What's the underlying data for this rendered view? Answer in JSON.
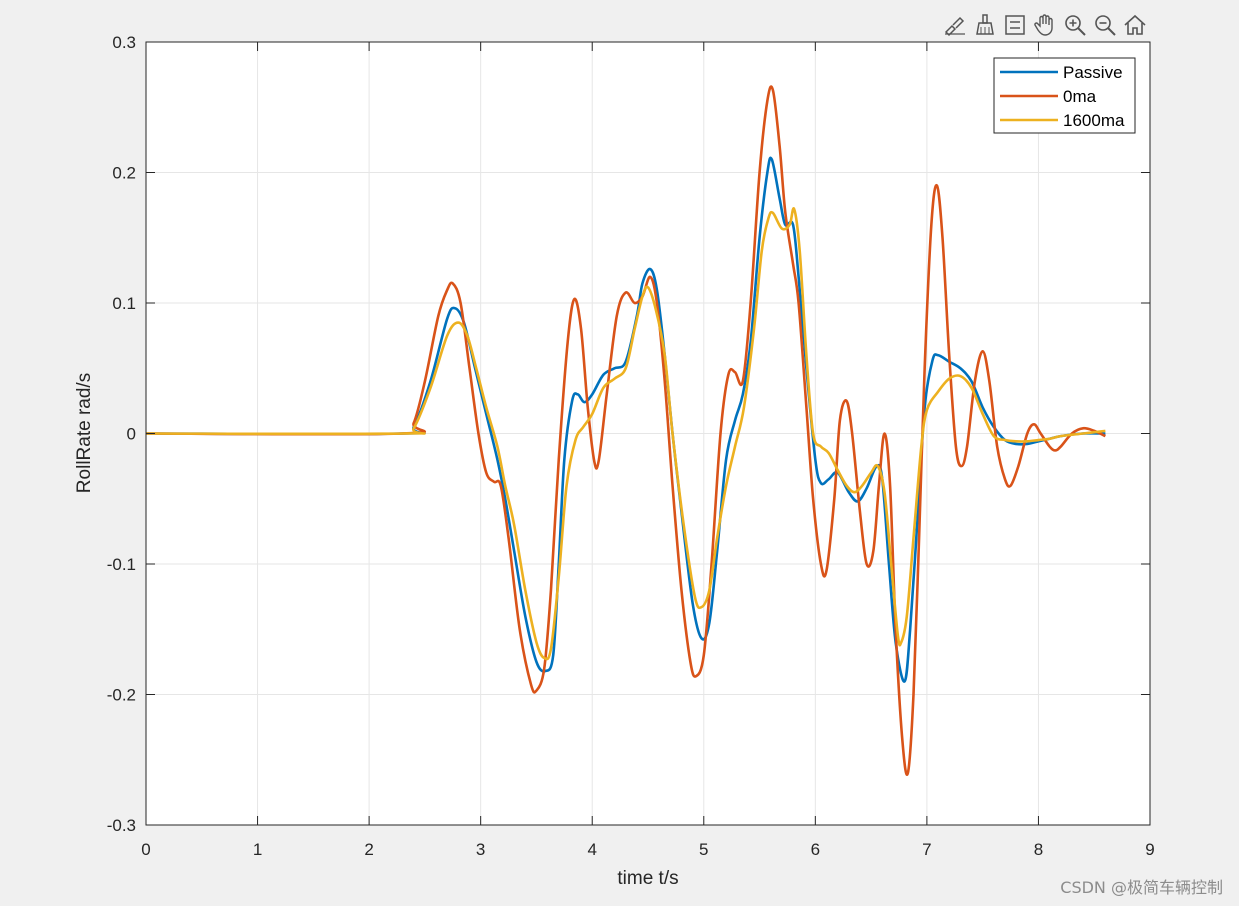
{
  "toolbar": {
    "icons": [
      "brush-edit-icon",
      "data-brush-icon",
      "legend-toggle-icon",
      "pan-hand-icon",
      "zoom-in-icon",
      "zoom-out-icon",
      "home-restore-icon"
    ]
  },
  "watermark": "CSDN @极简车辆控制",
  "colors": {
    "figure_bg": "#f0f0f0",
    "axes_bg": "#ffffff",
    "grid": "#e6e6e6",
    "axis": "#262626",
    "passive": "#0072BD",
    "zero_ma": "#D95319",
    "ma1600": "#EDB120"
  },
  "chart_data": {
    "type": "line",
    "xlabel": "time t/s",
    "ylabel": "RollRate rad/s",
    "xlim": [
      0,
      9
    ],
    "ylim": [
      -0.3,
      0.3
    ],
    "xticks": [
      0,
      1,
      2,
      3,
      4,
      5,
      6,
      7,
      8,
      9
    ],
    "yticks": [
      -0.3,
      -0.2,
      -0.1,
      0,
      0.1,
      0.2,
      0.3
    ],
    "xtick_labels": [
      "0",
      "1",
      "2",
      "3",
      "4",
      "5",
      "6",
      "7",
      "8",
      "9"
    ],
    "ytick_labels": [
      "-0.3",
      "-0.2",
      "-0.1",
      "0",
      "0.1",
      "0.2",
      "0.3"
    ],
    "grid": true,
    "legend_position": "top-right",
    "series": [
      {
        "name": "Passive",
        "color": "#0072BD",
        "points": [
          [
            0,
            0
          ],
          [
            2.3,
            0
          ],
          [
            2.4,
            0.005
          ],
          [
            2.55,
            0.04
          ],
          [
            2.7,
            0.088
          ],
          [
            2.77,
            0.096
          ],
          [
            2.85,
            0.085
          ],
          [
            2.95,
            0.05
          ],
          [
            3.05,
            0.015
          ],
          [
            3.15,
            -0.02
          ],
          [
            3.22,
            -0.05
          ],
          [
            3.3,
            -0.09
          ],
          [
            3.4,
            -0.14
          ],
          [
            3.5,
            -0.175
          ],
          [
            3.58,
            -0.182
          ],
          [
            3.65,
            -0.17
          ],
          [
            3.7,
            -0.1
          ],
          [
            3.75,
            -0.02
          ],
          [
            3.82,
            0.025
          ],
          [
            3.87,
            0.03
          ],
          [
            3.93,
            0.024
          ],
          [
            4.0,
            0.03
          ],
          [
            4.1,
            0.045
          ],
          [
            4.2,
            0.05
          ],
          [
            4.3,
            0.055
          ],
          [
            4.4,
            0.09
          ],
          [
            4.45,
            0.115
          ],
          [
            4.52,
            0.126
          ],
          [
            4.58,
            0.11
          ],
          [
            4.65,
            0.06
          ],
          [
            4.72,
            0.0
          ],
          [
            4.8,
            -0.06
          ],
          [
            4.9,
            -0.13
          ],
          [
            4.98,
            -0.157
          ],
          [
            5.05,
            -0.145
          ],
          [
            5.12,
            -0.09
          ],
          [
            5.2,
            -0.02
          ],
          [
            5.28,
            0.01
          ],
          [
            5.35,
            0.03
          ],
          [
            5.42,
            0.07
          ],
          [
            5.5,
            0.15
          ],
          [
            5.57,
            0.2
          ],
          [
            5.61,
            0.21
          ],
          [
            5.68,
            0.18
          ],
          [
            5.73,
            0.16
          ],
          [
            5.8,
            0.16
          ],
          [
            5.85,
            0.12
          ],
          [
            5.92,
            0.05
          ],
          [
            6.0,
            -0.02
          ],
          [
            6.05,
            -0.038
          ],
          [
            6.12,
            -0.035
          ],
          [
            6.2,
            -0.03
          ],
          [
            6.3,
            -0.045
          ],
          [
            6.38,
            -0.052
          ],
          [
            6.46,
            -0.042
          ],
          [
            6.55,
            -0.025
          ],
          [
            6.6,
            -0.035
          ],
          [
            6.66,
            -0.1
          ],
          [
            6.72,
            -0.16
          ],
          [
            6.8,
            -0.19
          ],
          [
            6.85,
            -0.15
          ],
          [
            6.92,
            -0.06
          ],
          [
            6.98,
            0.02
          ],
          [
            7.05,
            0.056
          ],
          [
            7.1,
            0.06
          ],
          [
            7.2,
            0.055
          ],
          [
            7.3,
            0.05
          ],
          [
            7.4,
            0.04
          ],
          [
            7.5,
            0.02
          ],
          [
            7.6,
            0.005
          ],
          [
            7.7,
            -0.005
          ],
          [
            7.8,
            -0.008
          ],
          [
            7.9,
            -0.008
          ],
          [
            8.0,
            -0.006
          ],
          [
            8.1,
            -0.004
          ],
          [
            8.2,
            -0.002
          ],
          [
            8.4,
            0.0
          ],
          [
            8.6,
            0.0
          ]
        ]
      },
      {
        "name": "0ma",
        "color": "#D95319",
        "points": [
          [
            0,
            0
          ],
          [
            2.3,
            0
          ],
          [
            2.4,
            0.008
          ],
          [
            2.5,
            0.04
          ],
          [
            2.62,
            0.09
          ],
          [
            2.7,
            0.11
          ],
          [
            2.75,
            0.115
          ],
          [
            2.82,
            0.1
          ],
          [
            2.9,
            0.05
          ],
          [
            2.98,
            0.0
          ],
          [
            3.05,
            -0.03
          ],
          [
            3.12,
            -0.037
          ],
          [
            3.18,
            -0.04
          ],
          [
            3.25,
            -0.08
          ],
          [
            3.35,
            -0.15
          ],
          [
            3.45,
            -0.192
          ],
          [
            3.5,
            -0.197
          ],
          [
            3.57,
            -0.18
          ],
          [
            3.63,
            -0.12
          ],
          [
            3.7,
            -0.02
          ],
          [
            3.78,
            0.07
          ],
          [
            3.84,
            0.103
          ],
          [
            3.9,
            0.08
          ],
          [
            3.96,
            0.02
          ],
          [
            4.02,
            -0.022
          ],
          [
            4.06,
            -0.02
          ],
          [
            4.13,
            0.03
          ],
          [
            4.22,
            0.09
          ],
          [
            4.3,
            0.108
          ],
          [
            4.38,
            0.1
          ],
          [
            4.45,
            0.105
          ],
          [
            4.52,
            0.12
          ],
          [
            4.58,
            0.1
          ],
          [
            4.65,
            0.04
          ],
          [
            4.72,
            -0.04
          ],
          [
            4.8,
            -0.12
          ],
          [
            4.88,
            -0.175
          ],
          [
            4.93,
            -0.186
          ],
          [
            5.0,
            -0.17
          ],
          [
            5.07,
            -0.1
          ],
          [
            5.15,
            0.0
          ],
          [
            5.22,
            0.045
          ],
          [
            5.28,
            0.047
          ],
          [
            5.35,
            0.04
          ],
          [
            5.42,
            0.1
          ],
          [
            5.5,
            0.2
          ],
          [
            5.57,
            0.255
          ],
          [
            5.62,
            0.263
          ],
          [
            5.68,
            0.22
          ],
          [
            5.73,
            0.17
          ],
          [
            5.8,
            0.13
          ],
          [
            5.85,
            0.1
          ],
          [
            5.92,
            0.02
          ],
          [
            5.98,
            -0.05
          ],
          [
            6.05,
            -0.1
          ],
          [
            6.1,
            -0.105
          ],
          [
            6.17,
            -0.05
          ],
          [
            6.22,
            0.01
          ],
          [
            6.28,
            0.025
          ],
          [
            6.33,
            0.0
          ],
          [
            6.4,
            -0.06
          ],
          [
            6.46,
            -0.1
          ],
          [
            6.52,
            -0.09
          ],
          [
            6.57,
            -0.04
          ],
          [
            6.62,
            0.0
          ],
          [
            6.67,
            -0.04
          ],
          [
            6.72,
            -0.15
          ],
          [
            6.78,
            -0.235
          ],
          [
            6.83,
            -0.26
          ],
          [
            6.88,
            -0.2
          ],
          [
            6.93,
            -0.08
          ],
          [
            6.98,
            0.05
          ],
          [
            7.04,
            0.16
          ],
          [
            7.09,
            0.19
          ],
          [
            7.14,
            0.15
          ],
          [
            7.2,
            0.06
          ],
          [
            7.26,
            -0.01
          ],
          [
            7.31,
            -0.025
          ],
          [
            7.36,
            -0.01
          ],
          [
            7.43,
            0.04
          ],
          [
            7.5,
            0.063
          ],
          [
            7.56,
            0.04
          ],
          [
            7.63,
            -0.01
          ],
          [
            7.7,
            -0.035
          ],
          [
            7.75,
            -0.04
          ],
          [
            7.82,
            -0.025
          ],
          [
            7.9,
            0.0
          ],
          [
            7.96,
            0.007
          ],
          [
            8.02,
            0.0
          ],
          [
            8.1,
            -0.01
          ],
          [
            8.15,
            -0.013
          ],
          [
            8.2,
            -0.01
          ],
          [
            8.3,
            0.0
          ],
          [
            8.4,
            0.004
          ],
          [
            8.5,
            0.002
          ],
          [
            8.6,
            -0.002
          ]
        ]
      },
      {
        "name": "1600ma",
        "color": "#EDB120",
        "points": [
          [
            0,
            0
          ],
          [
            2.3,
            0
          ],
          [
            2.4,
            0.004
          ],
          [
            2.55,
            0.035
          ],
          [
            2.7,
            0.075
          ],
          [
            2.8,
            0.085
          ],
          [
            2.88,
            0.075
          ],
          [
            2.96,
            0.05
          ],
          [
            3.05,
            0.02
          ],
          [
            3.15,
            -0.01
          ],
          [
            3.22,
            -0.04
          ],
          [
            3.3,
            -0.07
          ],
          [
            3.4,
            -0.12
          ],
          [
            3.5,
            -0.16
          ],
          [
            3.57,
            -0.172
          ],
          [
            3.63,
            -0.165
          ],
          [
            3.7,
            -0.11
          ],
          [
            3.77,
            -0.04
          ],
          [
            3.85,
            -0.005
          ],
          [
            3.92,
            0.005
          ],
          [
            4.0,
            0.015
          ],
          [
            4.1,
            0.035
          ],
          [
            4.2,
            0.042
          ],
          [
            4.3,
            0.05
          ],
          [
            4.38,
            0.08
          ],
          [
            4.45,
            0.105
          ],
          [
            4.5,
            0.112
          ],
          [
            4.57,
            0.095
          ],
          [
            4.65,
            0.06
          ],
          [
            4.72,
            0.0
          ],
          [
            4.82,
            -0.07
          ],
          [
            4.92,
            -0.125
          ],
          [
            4.98,
            -0.133
          ],
          [
            5.05,
            -0.12
          ],
          [
            5.12,
            -0.08
          ],
          [
            5.2,
            -0.04
          ],
          [
            5.28,
            -0.01
          ],
          [
            5.36,
            0.02
          ],
          [
            5.45,
            0.08
          ],
          [
            5.52,
            0.14
          ],
          [
            5.58,
            0.165
          ],
          [
            5.62,
            0.169
          ],
          [
            5.7,
            0.157
          ],
          [
            5.77,
            0.16
          ],
          [
            5.81,
            0.172
          ],
          [
            5.86,
            0.14
          ],
          [
            5.92,
            0.06
          ],
          [
            5.98,
            0.0
          ],
          [
            6.05,
            -0.01
          ],
          [
            6.12,
            -0.015
          ],
          [
            6.2,
            -0.028
          ],
          [
            6.28,
            -0.04
          ],
          [
            6.35,
            -0.045
          ],
          [
            6.42,
            -0.04
          ],
          [
            6.5,
            -0.03
          ],
          [
            6.56,
            -0.025
          ],
          [
            6.62,
            -0.045
          ],
          [
            6.68,
            -0.1
          ],
          [
            6.74,
            -0.155
          ],
          [
            6.77,
            -0.16
          ],
          [
            6.82,
            -0.14
          ],
          [
            6.88,
            -0.08
          ],
          [
            6.95,
            -0.01
          ],
          [
            7.0,
            0.018
          ],
          [
            7.1,
            0.032
          ],
          [
            7.2,
            0.042
          ],
          [
            7.3,
            0.044
          ],
          [
            7.4,
            0.035
          ],
          [
            7.5,
            0.015
          ],
          [
            7.6,
            -0.002
          ],
          [
            7.7,
            -0.005
          ],
          [
            7.8,
            -0.006
          ],
          [
            7.9,
            -0.006
          ],
          [
            8.0,
            -0.005
          ],
          [
            8.1,
            -0.004
          ],
          [
            8.2,
            -0.002
          ],
          [
            8.4,
            0.0
          ],
          [
            8.6,
            0.002
          ]
        ]
      }
    ]
  }
}
